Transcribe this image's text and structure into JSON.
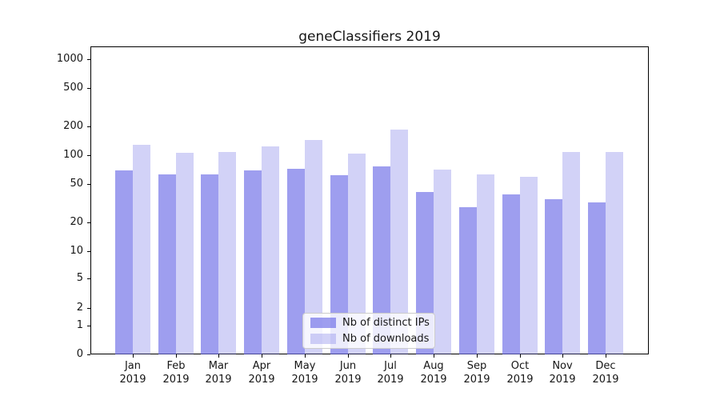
{
  "chart_data": {
    "type": "bar",
    "title": "geneClassifiers 2019",
    "year_label": "2019",
    "categories": [
      "Jan",
      "Feb",
      "Mar",
      "Apr",
      "May",
      "Jun",
      "Jul",
      "Aug",
      "Sep",
      "Oct",
      "Nov",
      "Dec"
    ],
    "series": [
      {
        "name": "Nb of distinct IPs",
        "values": [
          70,
          63,
          63,
          70,
          72,
          62,
          76,
          41,
          29,
          39,
          35,
          32
        ],
        "color": "#9e9eef",
        "alpha": 0.65
      },
      {
        "name": "Nb of downloads",
        "values": [
          128,
          106,
          107,
          123,
          145,
          103,
          186,
          71,
          63,
          59,
          109,
          107
        ],
        "color": "#d5d5f7",
        "alpha": 0.3
      }
    ],
    "base_color": "#6a6ae6",
    "yscale": "symlog",
    "ylim": [
      0,
      1360
    ],
    "y_ticks": [
      0,
      1,
      2,
      5,
      10,
      20,
      50,
      100,
      200,
      500,
      1000
    ],
    "grid": "both",
    "legend_position": "lower center",
    "colors": {
      "grid_major": "#b0b0b0",
      "grid_labeled": "#dcdcdc",
      "grid_minor": "#ececec",
      "axis": "#000000",
      "text": "#161616",
      "legend_border": "#cccccc"
    }
  }
}
